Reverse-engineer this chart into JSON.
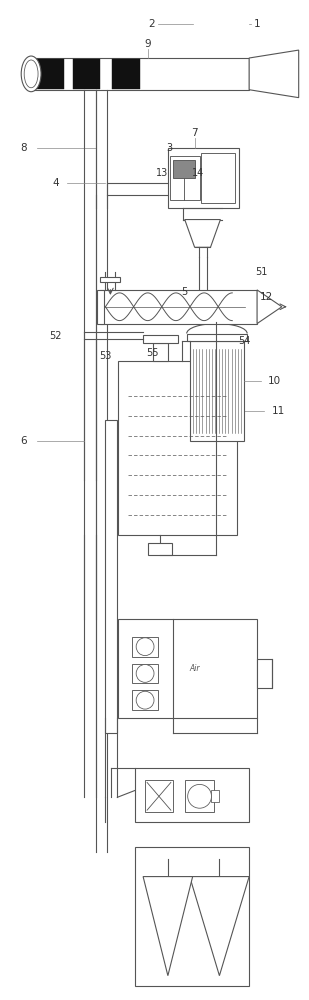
{
  "bg_color": "#ffffff",
  "line_color": "#555555",
  "label_color": "#333333",
  "lw": 0.8
}
